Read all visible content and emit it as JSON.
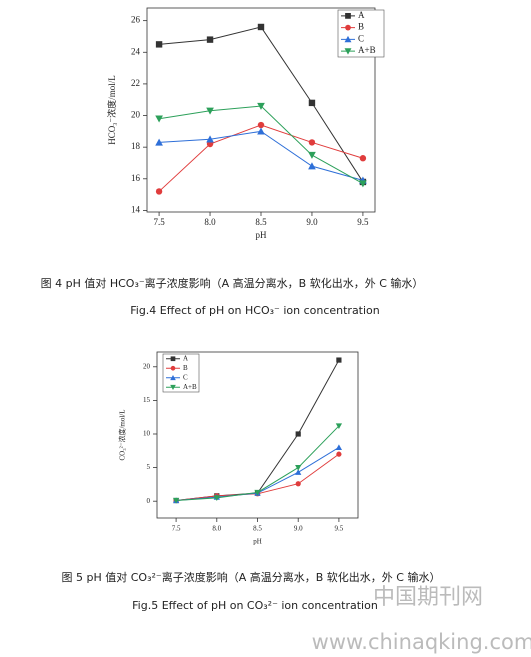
{
  "chart_data": [
    {
      "type": "line",
      "y_label": "HCO₃⁻浓度/mol/L",
      "x_label": "pH",
      "categories": [
        "7.5",
        "8.0",
        "8.5",
        "9.0",
        "9.5"
      ],
      "ylim": [
        13.9,
        26.8
      ],
      "yticks": [
        14,
        16,
        18,
        20,
        22,
        24,
        26
      ],
      "legend": "upper right",
      "series": [
        {
          "name": "A",
          "color": "#333333",
          "marker": "square",
          "values": [
            24.5,
            24.8,
            25.6,
            20.8,
            15.8
          ]
        },
        {
          "name": "B",
          "color": "#e03c3c",
          "marker": "circle",
          "values": [
            15.2,
            18.2,
            19.4,
            18.3,
            17.3
          ]
        },
        {
          "name": "C",
          "color": "#2e6fd8",
          "marker": "triangle-up",
          "values": [
            18.3,
            18.5,
            19.0,
            16.8,
            15.9
          ]
        },
        {
          "name": "A+B",
          "color": "#2ca05a",
          "marker": "triangle-down",
          "values": [
            19.8,
            20.3,
            20.6,
            17.5,
            15.7
          ]
        }
      ]
    },
    {
      "type": "line",
      "y_label": "CO₃²⁻浓度/mol/L",
      "x_label": "pH",
      "categories": [
        "7.5",
        "8.0",
        "8.5",
        "9.0",
        "9.5"
      ],
      "ylim": [
        -2.5,
        22.2
      ],
      "yticks": [
        0,
        5,
        10,
        15,
        20
      ],
      "legend": "upper left",
      "series": [
        {
          "name": "A",
          "color": "#333333",
          "marker": "square",
          "values": [
            0.1,
            0.8,
            1.2,
            10,
            21
          ]
        },
        {
          "name": "B",
          "color": "#e03c3c",
          "marker": "circle",
          "values": [
            0.1,
            0.8,
            1.1,
            2.6,
            7
          ]
        },
        {
          "name": "C",
          "color": "#2e6fd8",
          "marker": "triangle-up",
          "values": [
            0.1,
            0.6,
            1.2,
            4.3,
            8
          ]
        },
        {
          "name": "A+B",
          "color": "#2ca05a",
          "marker": "triangle-down",
          "values": [
            0.1,
            0.5,
            1.3,
            5,
            11.2
          ]
        }
      ]
    }
  ],
  "captions": [
    {
      "cn": "图 4 pH 值对 HCO₃⁻离子浓度影响（A 高温分离水，B 软化出水，外 C 输水）",
      "en": "Fig.4 Effect of pH on HCO₃⁻ ion concentration"
    },
    {
      "cn": "图 5 pH 值对 CO₃²⁻离子浓度影响（A 高温分离水，B 软化出水，外 C 输水）",
      "en": "Fig.5 Effect of pH on CO₃²⁻ ion concentration"
    }
  ],
  "watermark": {
    "logo": "中国期刊网",
    "url": "www.chinaqking.com"
  }
}
